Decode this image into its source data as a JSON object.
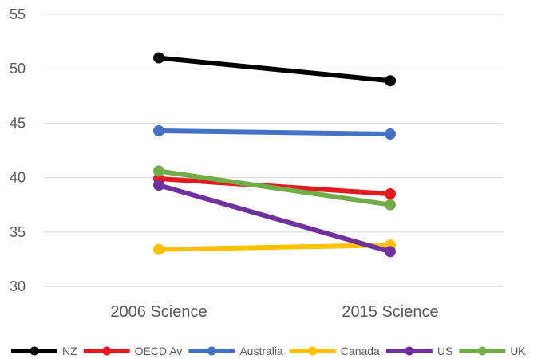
{
  "chart_data": {
    "type": "line",
    "title": "",
    "xlabel": "",
    "ylabel": "",
    "categories": [
      "2006 Science",
      "2015 Science"
    ],
    "ylim": [
      30,
      55
    ],
    "yticks": [
      30,
      35,
      40,
      45,
      50,
      55
    ],
    "grid": true,
    "legend": "bottom",
    "series": [
      {
        "name": "NZ",
        "color": "#000000",
        "values": [
          51.0,
          48.9
        ]
      },
      {
        "name": "OECD Av",
        "color": "#e8191e",
        "values": [
          39.9,
          38.5
        ]
      },
      {
        "name": "Australia",
        "color": "#4472c4",
        "values": [
          44.3,
          44.0
        ]
      },
      {
        "name": "Canada",
        "color": "#ffc000",
        "values": [
          33.4,
          33.8
        ]
      },
      {
        "name": "US",
        "color": "#7030a0",
        "values": [
          39.3,
          33.2
        ]
      },
      {
        "name": "UK",
        "color": "#70ad47",
        "values": [
          40.6,
          37.5
        ]
      }
    ]
  }
}
